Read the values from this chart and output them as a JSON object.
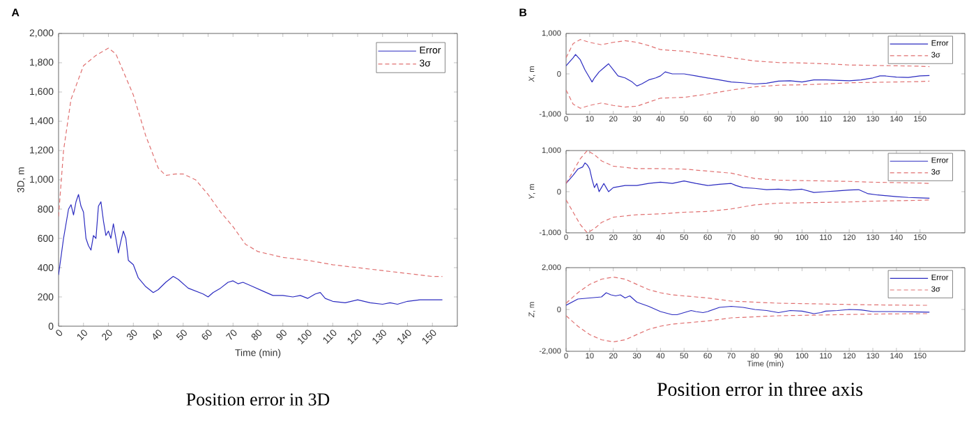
{
  "chart_data": [
    {
      "type": "line",
      "annotations": [
        "A",
        "Position error in 3D"
      ],
      "xlabel": "Time (min)",
      "ylabel": "3D, m",
      "xlim": [
        0,
        160
      ],
      "ylim": [
        0,
        2000
      ],
      "xticks": [
        0,
        10,
        20,
        30,
        40,
        50,
        60,
        70,
        80,
        90,
        100,
        110,
        120,
        130,
        140,
        150
      ],
      "yticks": [
        0,
        200,
        400,
        600,
        800,
        {
          "value": 1000,
          "label": "1,000"
        },
        {
          "value": 1200,
          "label": "1,200"
        },
        {
          "value": 1400,
          "label": "1,400"
        },
        {
          "value": 1600,
          "label": "1,600"
        },
        {
          "value": 1800,
          "label": "1,800"
        },
        {
          "value": 2000,
          "label": "2,000"
        }
      ],
      "legend": "top right",
      "series": [
        {
          "name": "Error",
          "color": "#2b2bc0",
          "line_style": "solid",
          "x": [
            0,
            2,
            4,
            5,
            6,
            7,
            8,
            9,
            10,
            11,
            12,
            13,
            14,
            15,
            16,
            17,
            18,
            19,
            20,
            21,
            22,
            23,
            24,
            25,
            26,
            27,
            28,
            30,
            32,
            35,
            38,
            40,
            43,
            46,
            48,
            50,
            52,
            55,
            58,
            60,
            62,
            65,
            68,
            70,
            72,
            74,
            78,
            82,
            86,
            90,
            94,
            97,
            100,
            103,
            105,
            107,
            110,
            115,
            120,
            125,
            130,
            133,
            136,
            140,
            145,
            150,
            154
          ],
          "values": [
            350,
            600,
            800,
            830,
            760,
            850,
            900,
            820,
            780,
            600,
            550,
            520,
            620,
            600,
            820,
            850,
            720,
            620,
            650,
            600,
            700,
            600,
            500,
            580,
            650,
            600,
            450,
            420,
            330,
            270,
            230,
            250,
            300,
            340,
            320,
            290,
            260,
            240,
            220,
            200,
            230,
            260,
            300,
            310,
            290,
            300,
            270,
            240,
            210,
            210,
            200,
            210,
            190,
            220,
            230,
            190,
            170,
            160,
            180,
            160,
            150,
            160,
            150,
            170,
            180,
            180,
            180
          ]
        },
        {
          "name": "3σ",
          "color": "#e07070",
          "line_style": "dashed",
          "x": [
            0,
            2,
            5,
            10,
            15,
            20,
            23,
            27,
            30,
            35,
            40,
            43,
            47,
            50,
            55,
            60,
            65,
            70,
            75,
            80,
            90,
            100,
            110,
            120,
            130,
            140,
            150,
            154
          ],
          "values": [
            750,
            1200,
            1550,
            1780,
            1850,
            1900,
            1860,
            1700,
            1580,
            1300,
            1080,
            1030,
            1040,
            1040,
            1000,
            900,
            780,
            680,
            560,
            510,
            470,
            450,
            420,
            400,
            380,
            360,
            340,
            340
          ]
        }
      ]
    },
    {
      "type": "line",
      "annotations": [
        "B"
      ],
      "ylabel": "*X*, m",
      "xlim": [
        0,
        169
      ],
      "ylim": [
        -1000,
        1000
      ],
      "xticks": [
        0,
        10,
        20,
        30,
        40,
        50,
        60,
        70,
        80,
        90,
        100,
        110,
        120,
        130,
        140,
        150
      ],
      "yticks": [
        {
          "value": -1000,
          "label": "-1,000"
        },
        0,
        {
          "value": 1000,
          "label": "1,000"
        }
      ],
      "legend": "top right",
      "series": [
        {
          "name": "Error",
          "color": "#2b2bc0",
          "line_style": "solid",
          "x": [
            0,
            3,
            4,
            6,
            8,
            10,
            11,
            12,
            14,
            16,
            18,
            20,
            22,
            25,
            28,
            30,
            32,
            35,
            38,
            40,
            42,
            45,
            50,
            55,
            60,
            65,
            70,
            75,
            80,
            85,
            90,
            95,
            100,
            105,
            110,
            115,
            120,
            125,
            130,
            133,
            135,
            140,
            145,
            150,
            154
          ],
          "values": [
            200,
            400,
            480,
            350,
            100,
            -100,
            -200,
            -100,
            50,
            150,
            250,
            100,
            -50,
            -100,
            -200,
            -300,
            -250,
            -150,
            -100,
            -50,
            50,
            0,
            0,
            -50,
            -100,
            -150,
            -200,
            -220,
            -250,
            -230,
            -180,
            -170,
            -200,
            -150,
            -150,
            -160,
            -170,
            -150,
            -100,
            -50,
            -50,
            -80,
            -90,
            -50,
            -40
          ]
        },
        {
          "name": "3σ",
          "color": "#e07070",
          "line_style": "dashed",
          "x": [
            0,
            3,
            6,
            10,
            15,
            20,
            25,
            30,
            35,
            40,
            50,
            60,
            70,
            80,
            90,
            100,
            110,
            120,
            130,
            140,
            150,
            154
          ],
          "values": [
            400,
            750,
            850,
            780,
            720,
            780,
            820,
            780,
            700,
            600,
            560,
            480,
            400,
            320,
            280,
            270,
            250,
            220,
            210,
            200,
            190,
            180
          ]
        },
        {
          "color": "#e07070",
          "line_style": "dashed",
          "x": [
            0,
            3,
            6,
            10,
            15,
            20,
            25,
            30,
            35,
            40,
            50,
            60,
            70,
            80,
            90,
            100,
            110,
            120,
            130,
            140,
            150,
            154
          ],
          "values": [
            -400,
            -750,
            -850,
            -780,
            -720,
            -780,
            -820,
            -800,
            -700,
            -600,
            -580,
            -500,
            -400,
            -320,
            -280,
            -270,
            -250,
            -220,
            -210,
            -200,
            -190,
            -180
          ]
        }
      ]
    },
    {
      "type": "line",
      "ylabel": "*Y*, m",
      "xlim": [
        0,
        169
      ],
      "ylim": [
        -1000,
        1000
      ],
      "xticks": [
        0,
        10,
        20,
        30,
        40,
        50,
        60,
        70,
        80,
        90,
        100,
        110,
        120,
        130,
        140,
        150
      ],
      "yticks": [
        {
          "value": -1000,
          "label": "-1,000"
        },
        0,
        {
          "value": 1000,
          "label": "1,000"
        }
      ],
      "legend": "top right",
      "series": [
        {
          "name": "Error",
          "color": "#2b2bc0",
          "line_style": "solid",
          "x": [
            0,
            3,
            5,
            7,
            8,
            9,
            10,
            11,
            12,
            13,
            14,
            15,
            16,
            17,
            18,
            20,
            25,
            30,
            35,
            40,
            45,
            50,
            55,
            60,
            65,
            70,
            72,
            75,
            80,
            85,
            90,
            95,
            100,
            105,
            110,
            115,
            120,
            124,
            128,
            132,
            136,
            140,
            145,
            150,
            154
          ],
          "values": [
            200,
            400,
            550,
            600,
            700,
            650,
            550,
            300,
            100,
            200,
            0,
            100,
            200,
            100,
            0,
            100,
            150,
            150,
            200,
            230,
            200,
            260,
            200,
            150,
            180,
            200,
            150,
            100,
            80,
            50,
            60,
            40,
            60,
            -20,
            0,
            20,
            40,
            50,
            -50,
            -80,
            -100,
            -120,
            -140,
            -150,
            -160
          ]
        },
        {
          "name": "3σ",
          "color": "#e07070",
          "line_style": "dashed",
          "x": [
            0,
            3,
            6,
            9,
            12,
            15,
            20,
            30,
            40,
            50,
            60,
            70,
            80,
            90,
            100,
            110,
            120,
            130,
            140,
            150,
            154
          ],
          "values": [
            200,
            500,
            800,
            1000,
            900,
            750,
            620,
            560,
            560,
            550,
            500,
            450,
            320,
            280,
            270,
            260,
            250,
            230,
            220,
            210,
            200
          ]
        },
        {
          "color": "#e07070",
          "line_style": "dashed",
          "x": [
            0,
            3,
            6,
            9,
            12,
            15,
            20,
            30,
            40,
            50,
            60,
            70,
            80,
            90,
            100,
            110,
            120,
            130,
            140,
            150,
            154
          ],
          "values": [
            -200,
            -500,
            -800,
            -1000,
            -900,
            -750,
            -620,
            -560,
            -540,
            -500,
            -480,
            -420,
            -320,
            -280,
            -270,
            -260,
            -250,
            -230,
            -220,
            -210,
            -200
          ]
        }
      ]
    },
    {
      "type": "line",
      "annotations": [
        "Position error in three axis"
      ],
      "xlabel": "Time (min)",
      "ylabel": "*Z*, m",
      "xlim": [
        0,
        169
      ],
      "ylim": [
        -2000,
        2000
      ],
      "xticks": [
        0,
        10,
        20,
        30,
        40,
        50,
        60,
        70,
        80,
        90,
        100,
        110,
        120,
        130,
        140,
        150
      ],
      "yticks": [
        {
          "value": -2000,
          "label": "-2,000"
        },
        0,
        {
          "value": 2000,
          "label": "2,000"
        }
      ],
      "legend": "top right",
      "series": [
        {
          "name": "Error",
          "color": "#2b2bc0",
          "line_style": "solid",
          "x": [
            0,
            5,
            10,
            15,
            17,
            19,
            21,
            23,
            25,
            27,
            30,
            35,
            40,
            45,
            47,
            50,
            53,
            55,
            58,
            60,
            65,
            70,
            75,
            80,
            85,
            90,
            95,
            100,
            105,
            108,
            110,
            115,
            120,
            125,
            130,
            140,
            150,
            154
          ],
          "values": [
            200,
            500,
            550,
            600,
            800,
            700,
            650,
            700,
            550,
            650,
            350,
            150,
            -100,
            -250,
            -250,
            -150,
            -50,
            -100,
            -150,
            -100,
            100,
            150,
            100,
            0,
            -50,
            -150,
            -50,
            -80,
            -200,
            -150,
            -80,
            -50,
            0,
            -20,
            -100,
            -100,
            -120,
            -130
          ]
        },
        {
          "name": "3σ",
          "color": "#e07070",
          "line_style": "dashed",
          "x": [
            0,
            5,
            10,
            15,
            20,
            25,
            30,
            35,
            40,
            45,
            50,
            60,
            70,
            80,
            90,
            100,
            110,
            120,
            130,
            140,
            150,
            154
          ],
          "values": [
            300,
            800,
            1200,
            1450,
            1550,
            1450,
            1200,
            950,
            800,
            700,
            650,
            550,
            400,
            350,
            300,
            280,
            260,
            240,
            220,
            210,
            200,
            200
          ]
        },
        {
          "color": "#e07070",
          "line_style": "dashed",
          "x": [
            0,
            5,
            10,
            15,
            20,
            25,
            30,
            35,
            40,
            45,
            50,
            60,
            70,
            80,
            90,
            100,
            110,
            120,
            130,
            140,
            150,
            154
          ],
          "values": [
            -300,
            -800,
            -1200,
            -1450,
            -1550,
            -1450,
            -1200,
            -950,
            -800,
            -700,
            -650,
            -550,
            -400,
            -350,
            -300,
            -280,
            -260,
            -240,
            -220,
            -210,
            -200,
            -200
          ]
        }
      ]
    }
  ]
}
